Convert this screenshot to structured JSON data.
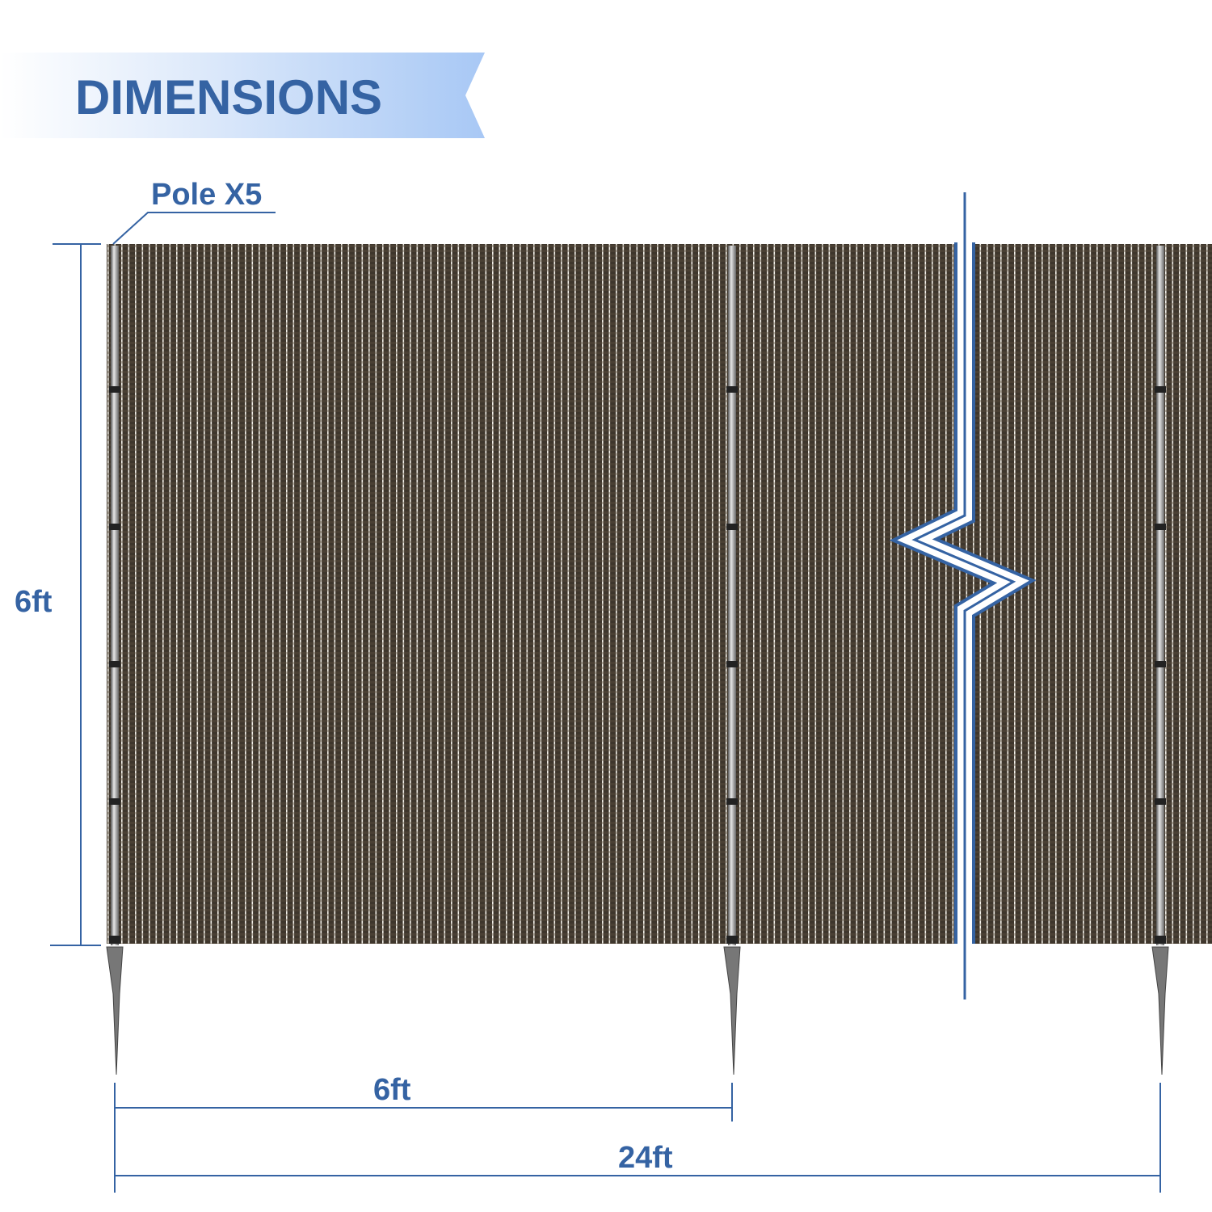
{
  "header": {
    "title": "DIMENSIONS"
  },
  "labels": {
    "poles": "Pole X5",
    "height": "6ft",
    "pole_spacing": "6ft",
    "total_length": "24ft"
  },
  "colors": {
    "accent": "#3563a3",
    "fabric": "#4a4034",
    "fabric_stripe": "#e8e4dc",
    "pole": "#8c8c8c"
  }
}
